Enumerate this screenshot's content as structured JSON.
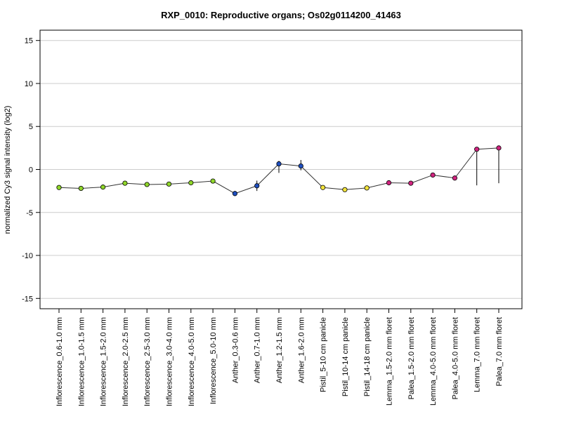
{
  "chart_data": {
    "type": "line",
    "title": "RXP_0010: Reproductive organs; Os02g0114200_41463",
    "xlabel": "",
    "ylabel": "normalized Cy3 signal intensity (log2)",
    "ylim": [
      -16.2,
      16.2
    ],
    "yticks": [
      15,
      10,
      5,
      0,
      -5,
      -10,
      -15
    ],
    "grid": true,
    "categories": [
      "Inflorescence_0.6-1.0 mm",
      "Inflorescence_1.0-1.5 mm",
      "Inflorescence_1.5-2.0 mm",
      "Inflorescence_2.0-2.5 mm",
      "Inflorescence_2.5-3.0 mm",
      "Inflorescence_3.0-4.0 mm",
      "Inflorescence_4.0-5.0 mm",
      "Inflorescence_5.0-10 mm",
      "Anther_0.3-0.6 mm",
      "Anther_0.7-1.0 mm",
      "Anther_1.2-1.5 mm",
      "Anther_1.6-2.0 mm",
      "Pistil_5-10 cm panicle",
      "Pistil_10-14 cm panicle",
      "Pistil_14-18 cm panicle",
      "Lemma_1.5-2.0 mm floret",
      "Palea_1.5-2.0 mm floret",
      "Lemma_4.0-5.0 mm floret",
      "Palea_4.0-5.0 mm floret",
      "Lemma_7.0 mm floret",
      "Palea_7.0 mm floret"
    ],
    "values": [
      -2.1,
      -2.2,
      -2.05,
      -1.6,
      -1.75,
      -1.7,
      -1.55,
      -1.35,
      -2.8,
      -1.9,
      0.65,
      0.4,
      -2.1,
      -2.35,
      -2.15,
      -1.55,
      -1.6,
      -0.65,
      -1.0,
      2.35,
      2.5
    ],
    "error_low": [
      -2.1,
      -2.2,
      -2.05,
      -1.6,
      -1.75,
      -1.7,
      -1.55,
      -1.35,
      -3.1,
      -2.5,
      -0.4,
      -0.1,
      -2.1,
      -2.35,
      -2.15,
      -1.55,
      -1.6,
      -0.65,
      -1.0,
      -1.85,
      -1.6
    ],
    "error_high": [
      -2.1,
      -2.2,
      -2.05,
      -1.6,
      -1.75,
      -1.7,
      -1.55,
      -1.35,
      -2.5,
      -1.3,
      1.0,
      1.1,
      -2.1,
      -2.35,
      -2.15,
      -1.55,
      -1.6,
      -0.65,
      -1.0,
      2.35,
      2.5
    ],
    "point_colors": [
      "#8fd62a",
      "#8fd62a",
      "#8fd62a",
      "#8fd62a",
      "#8fd62a",
      "#8fd62a",
      "#8fd62a",
      "#8fd62a",
      "#1f4fbf",
      "#1f4fbf",
      "#1f4fbf",
      "#1f4fbf",
      "#f2e33a",
      "#f2e33a",
      "#f2e33a",
      "#d0247f",
      "#d0247f",
      "#d0247f",
      "#d0247f",
      "#d0247f",
      "#d0247f"
    ],
    "line_color": "#333333",
    "grid_color": "#cccccc"
  }
}
